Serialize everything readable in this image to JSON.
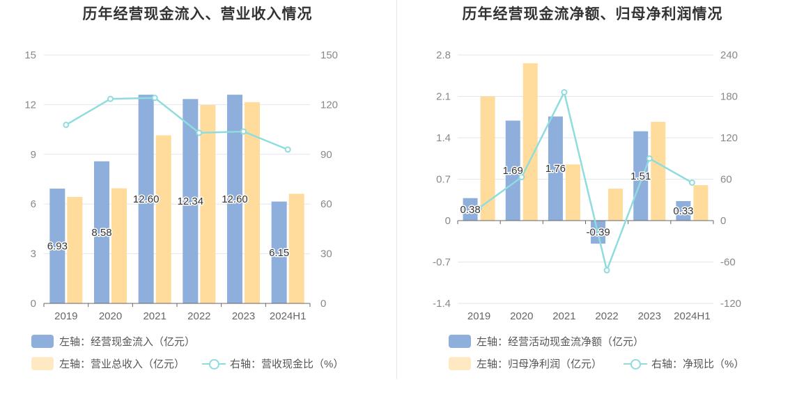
{
  "colors": {
    "bar1": "#8eaedb",
    "bar2": "#ffdb9c",
    "line": "#8fdcdf",
    "grid": "#e3e6ef"
  },
  "chart_data": [
    {
      "type": "bar",
      "title": "历年经营现金流入、营业收入情况",
      "categories": [
        "2019",
        "2020",
        "2021",
        "2022",
        "2023",
        "2024H1"
      ],
      "left_axis": {
        "ticks": [
          "0",
          "3",
          "6",
          "9",
          "12",
          "15"
        ],
        "ylim": [
          0,
          15
        ]
      },
      "right_axis": {
        "ticks": [
          "0",
          "30",
          "60",
          "90",
          "120",
          "150"
        ],
        "ylim": [
          0,
          150
        ]
      },
      "series": [
        {
          "name": "经营现金流入",
          "kind": "bar",
          "axis": "left",
          "values": [
            6.93,
            8.58,
            12.6,
            12.34,
            12.6,
            6.15
          ],
          "labels": [
            "6.93",
            "8.58",
            "12.60",
            "12.34",
            "12.60",
            "6.15"
          ]
        },
        {
          "name": "营业总收入",
          "kind": "bar",
          "axis": "left",
          "values": [
            6.43,
            6.95,
            10.15,
            11.98,
            12.15,
            6.62
          ]
        },
        {
          "name": "营收现金比",
          "kind": "line",
          "axis": "right",
          "values": [
            107.8,
            123.5,
            124.1,
            103.0,
            103.8,
            92.9
          ]
        }
      ],
      "legend": [
        "左轴：经营现金流入（亿元）",
        "左轴：营业总收入（亿元）",
        "右轴：营收现金比（%）"
      ]
    },
    {
      "type": "bar",
      "title": "历年经营现金流净额、归母净利润情况",
      "categories": [
        "2019",
        "2020",
        "2021",
        "2022",
        "2023",
        "2024H1"
      ],
      "left_axis": {
        "ticks": [
          "-1.4",
          "-0.7",
          "0",
          "0.7",
          "1.4",
          "2.1",
          "2.8"
        ],
        "ylim": [
          -1.4,
          2.8
        ]
      },
      "right_axis": {
        "ticks": [
          "-120",
          "-60",
          "0",
          "60",
          "120",
          "180",
          "240"
        ],
        "ylim": [
          -120,
          240
        ]
      },
      "series": [
        {
          "name": "经营活动现金流净额",
          "kind": "bar",
          "axis": "left",
          "values": [
            0.38,
            1.69,
            1.76,
            -0.39,
            1.51,
            0.33
          ],
          "labels": [
            "0.38",
            "1.69",
            "1.76",
            "-0.39",
            "1.51",
            "0.33"
          ]
        },
        {
          "name": "归母净利润",
          "kind": "bar",
          "axis": "left",
          "values": [
            2.1,
            2.66,
            0.95,
            0.54,
            1.67,
            0.6
          ]
        },
        {
          "name": "净现比",
          "kind": "line",
          "axis": "right",
          "values": [
            18,
            63,
            186,
            -72,
            90,
            55
          ]
        }
      ],
      "legend": [
        "左轴：经营活动现金流净额（亿元）",
        "左轴：归母净利润（亿元）",
        "右轴：净现比（%）"
      ]
    }
  ]
}
